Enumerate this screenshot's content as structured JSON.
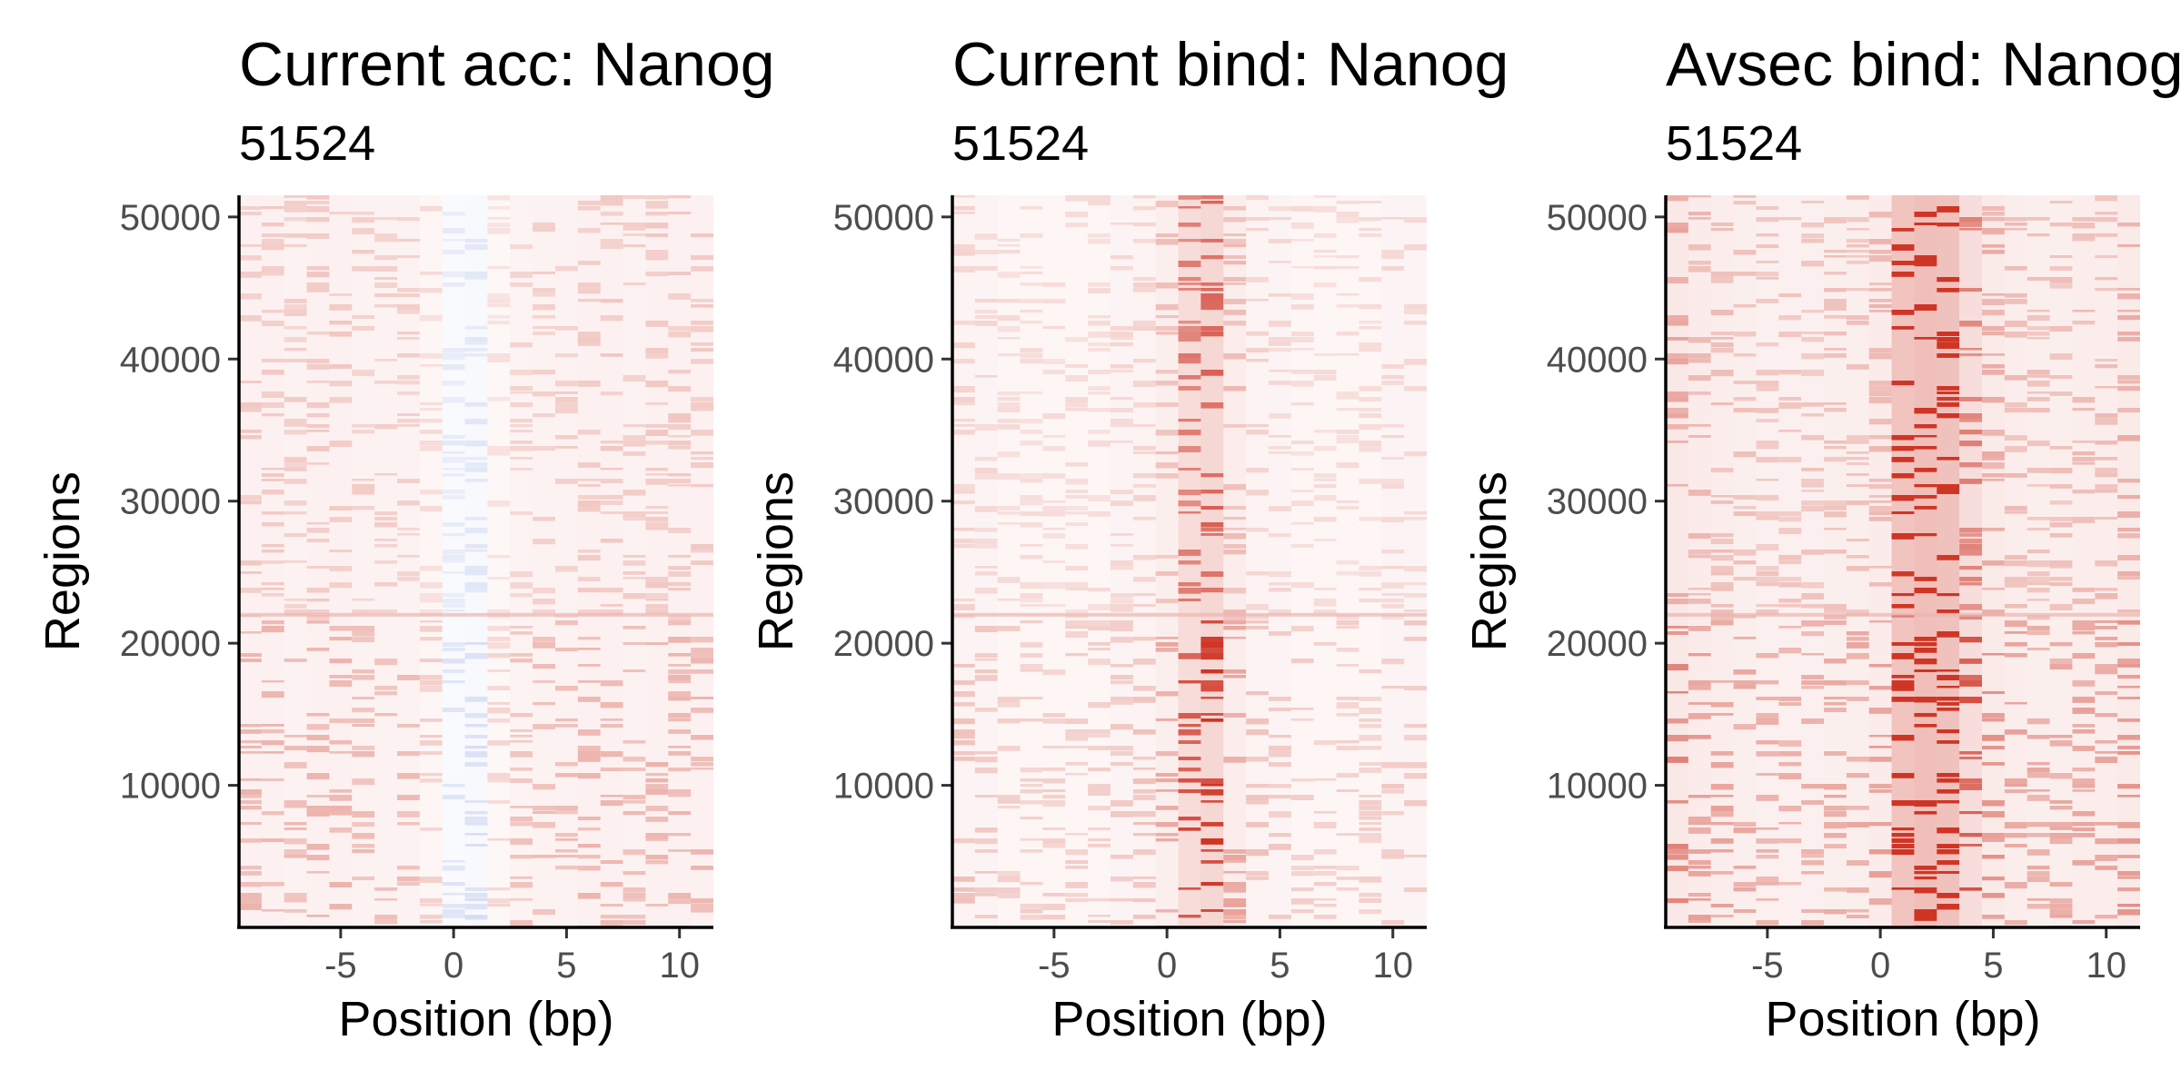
{
  "chart_data": [
    {
      "type": "heatmap",
      "title": "Current acc: Nanog",
      "subtitle": "51524",
      "xlabel": "Position (bp)",
      "ylabel": "Regions",
      "x": [
        -9,
        -8,
        -7,
        -6,
        -5,
        -4,
        -3,
        -2,
        -1,
        0,
        1,
        2,
        3,
        4,
        5,
        6,
        7,
        8,
        9,
        10,
        11
      ],
      "xlim": [
        -9.5,
        11.5
      ],
      "ylim": [
        1,
        51524
      ],
      "x_ticks": [
        -5,
        0,
        5,
        10
      ],
      "y_ticks": [
        10000,
        20000,
        30000,
        40000,
        50000
      ],
      "column_intensity": [
        0.12,
        0.12,
        0.11,
        0.12,
        0.12,
        0.11,
        0.11,
        0.11,
        0.08,
        -0.06,
        -0.07,
        0.07,
        0.1,
        0.11,
        0.11,
        0.12,
        0.12,
        0.11,
        0.12,
        0.12,
        0.12
      ],
      "colors": {
        "positive": "#cc2a1a",
        "negative": "#3a5fc8",
        "zero": "#ffffff"
      },
      "grid": false
    },
    {
      "type": "heatmap",
      "title": "Current bind: Nanog",
      "subtitle": "51524",
      "xlabel": "Position (bp)",
      "ylabel": "Regions",
      "x": [
        -9,
        -8,
        -7,
        -6,
        -5,
        -4,
        -3,
        -2,
        -1,
        0,
        1,
        2,
        3,
        4,
        5,
        6,
        7,
        8,
        9,
        10,
        11
      ],
      "xlim": [
        -9.5,
        11.5
      ],
      "ylim": [
        1,
        51524
      ],
      "x_ticks": [
        -5,
        0,
        5,
        10
      ],
      "y_ticks": [
        10000,
        20000,
        30000,
        40000,
        50000
      ],
      "column_intensity": [
        0.1,
        0.09,
        0.08,
        0.08,
        0.08,
        0.08,
        0.08,
        0.09,
        0.1,
        0.14,
        0.3,
        0.34,
        0.15,
        0.1,
        0.09,
        0.08,
        0.08,
        0.08,
        0.08,
        0.09,
        0.09
      ],
      "colors": {
        "positive": "#cc2a1a",
        "negative": "#3a5fc8",
        "zero": "#ffffff"
      },
      "grid": false
    },
    {
      "type": "heatmap",
      "title": "Avsec bind: Nanog",
      "subtitle": "51524",
      "xlabel": "Position (bp)",
      "ylabel": "Regions",
      "x": [
        -9,
        -8,
        -7,
        -6,
        -5,
        -4,
        -3,
        -2,
        -1,
        0,
        1,
        2,
        3,
        4,
        5,
        6,
        7,
        8,
        9,
        10,
        11
      ],
      "xlim": [
        -9.5,
        11.5
      ],
      "ylim": [
        1,
        51524
      ],
      "x_ticks": [
        -5,
        0,
        5,
        10
      ],
      "y_ticks": [
        10000,
        20000,
        30000,
        40000,
        50000
      ],
      "column_intensity": [
        0.2,
        0.16,
        0.15,
        0.14,
        0.13,
        0.13,
        0.13,
        0.14,
        0.14,
        0.16,
        0.5,
        0.55,
        0.52,
        0.28,
        0.18,
        0.15,
        0.14,
        0.14,
        0.15,
        0.15,
        0.18
      ],
      "colors": {
        "positive": "#cc2a1a",
        "negative": "#3a5fc8",
        "zero": "#ffffff"
      },
      "grid": false
    }
  ]
}
